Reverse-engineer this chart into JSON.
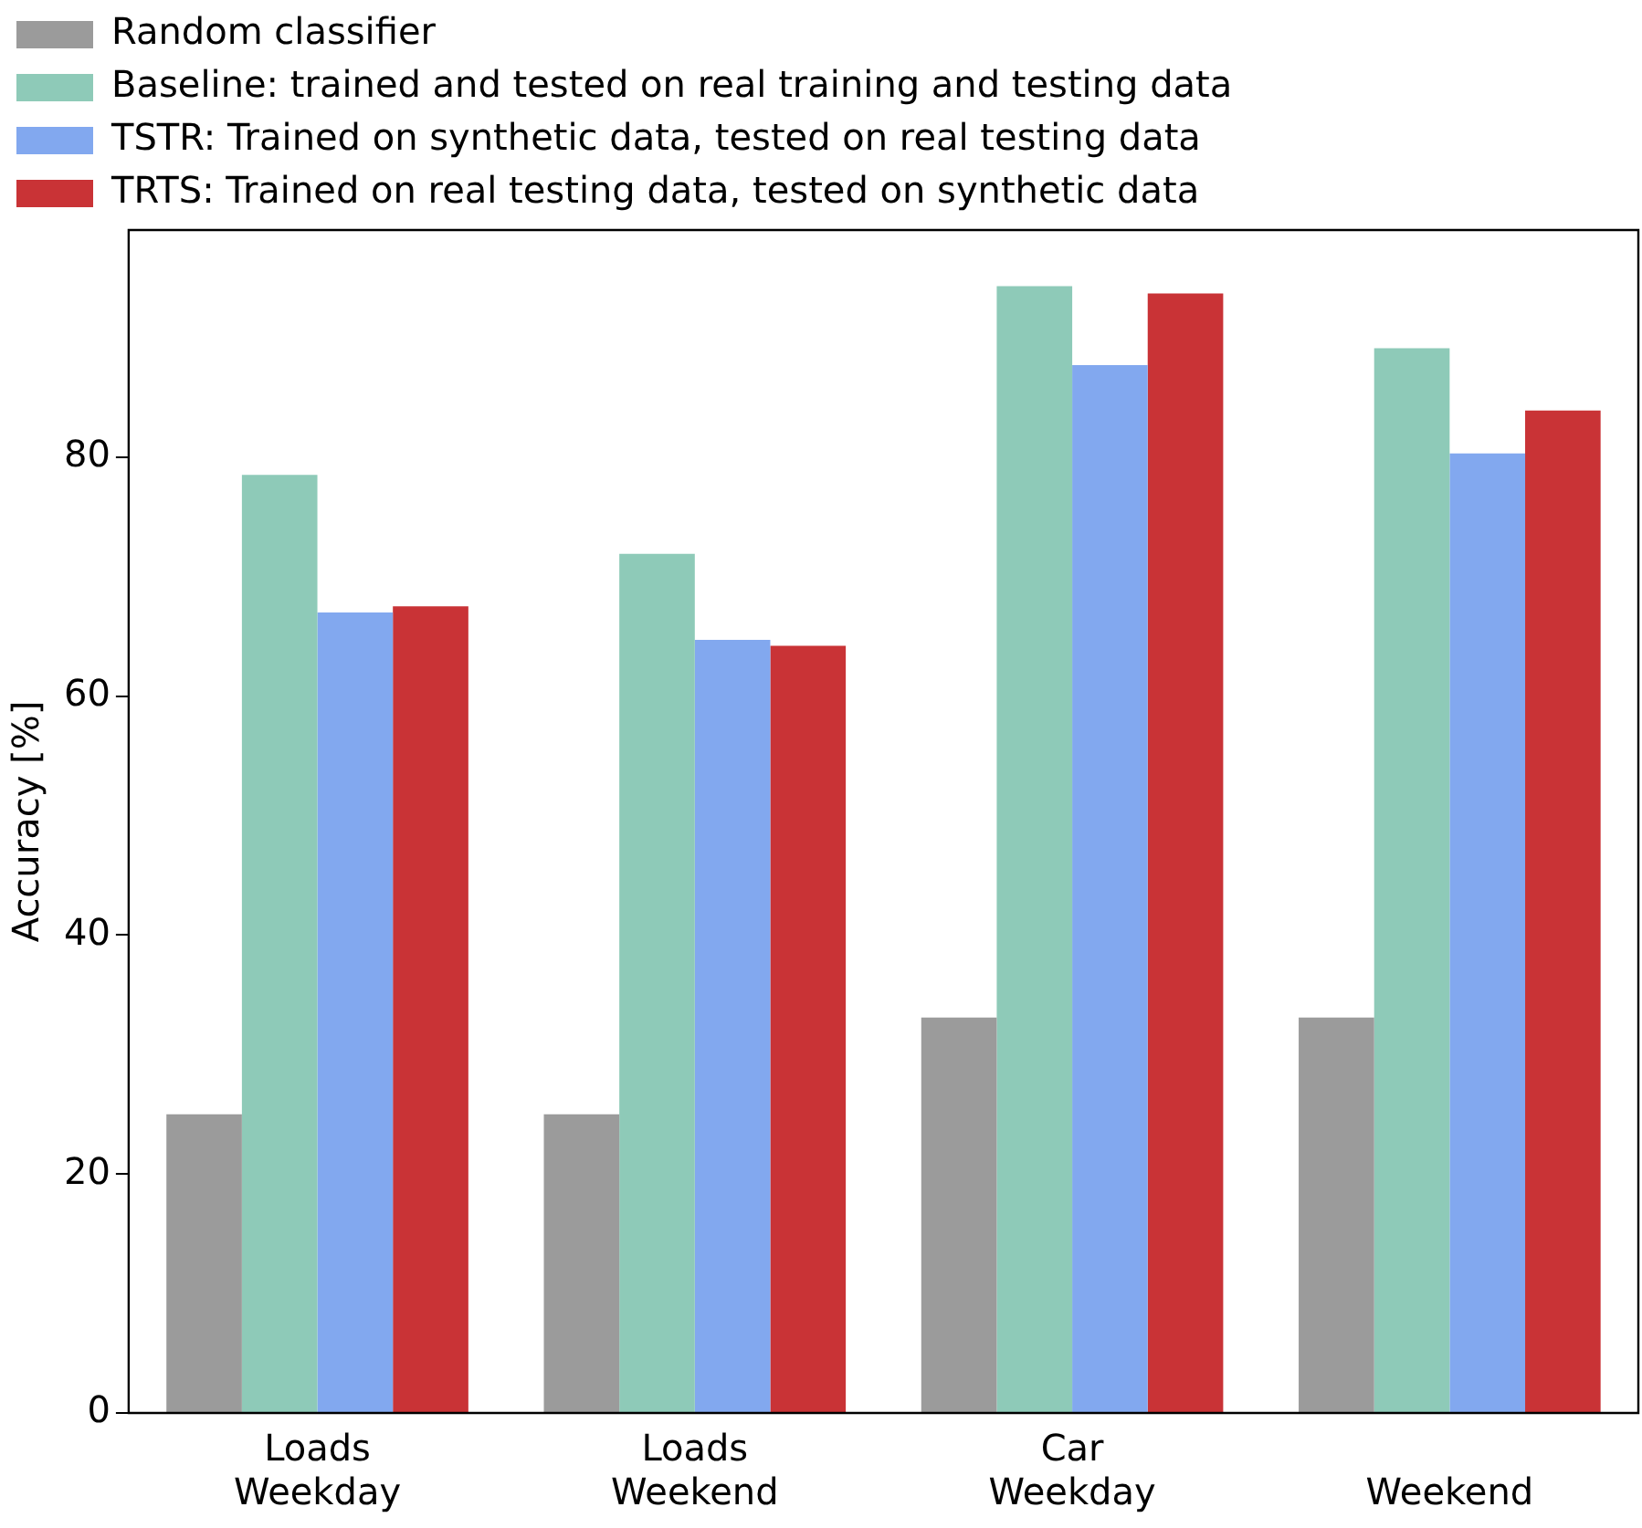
{
  "chart_data": {
    "type": "bar",
    "ylabel": "Accuracy [%]",
    "categories": [
      "Loads\nWeekday",
      "Loads\nWeekend",
      "Car\nWeekday",
      "Weekend"
    ],
    "series": [
      {
        "name": "Random classifier",
        "color": "#9b9b9b",
        "values": [
          25,
          25,
          33.1,
          33.1
        ]
      },
      {
        "name": "Baseline: trained and tested on real training and testing data",
        "color": "#8ecab8",
        "values": [
          78.5,
          71.9,
          94.3,
          89.1
        ]
      },
      {
        "name": "TSTR: Trained on synthetic data, tested on real testing data",
        "color": "#82a8ef",
        "values": [
          67.0,
          64.7,
          87.7,
          80.3
        ]
      },
      {
        "name": "TRTS: Trained on real testing data, tested on synthetic data",
        "color": "#c93336",
        "values": [
          67.5,
          64.2,
          93.7,
          83.9
        ]
      }
    ],
    "ylim": [
      0,
      99
    ],
    "yticks": [
      0,
      20,
      40,
      60,
      80
    ],
    "grid": false,
    "legend": "top left"
  }
}
